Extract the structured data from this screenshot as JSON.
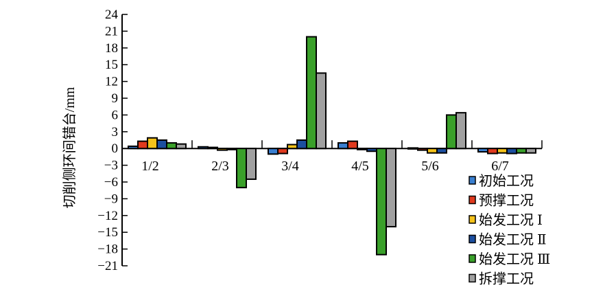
{
  "chart_data": {
    "type": "bar",
    "ylabel": "切削侧环间错台/mm",
    "ylim": [
      -21,
      24
    ],
    "yticks": [
      24,
      21,
      18,
      15,
      12,
      9,
      6,
      3,
      0,
      -3,
      -6,
      -9,
      -12,
      -15,
      -18,
      -21
    ],
    "categories": [
      "1/2",
      "2/3",
      "3/4",
      "4/5",
      "5/6",
      "6/7"
    ],
    "legend_position": "bottom-right",
    "grid": false,
    "series": [
      {
        "name": "初始工况",
        "color": "#3a7fd0",
        "values": [
          0.4,
          0.3,
          -1.0,
          1.0,
          0.1,
          -0.6
        ]
      },
      {
        "name": "预撑工况",
        "color": "#e03a1e",
        "values": [
          1.3,
          0.2,
          -0.9,
          1.3,
          -0.3,
          -0.9
        ]
      },
      {
        "name": "始发工况 Ⅰ",
        "color": "#f5c21a",
        "values": [
          1.9,
          -0.3,
          0.7,
          -0.2,
          -0.8,
          -0.8
        ]
      },
      {
        "name": "始发工况 Ⅱ",
        "color": "#1c4fa0",
        "values": [
          1.5,
          -0.2,
          1.5,
          -0.5,
          -0.8,
          -0.9
        ]
      },
      {
        "name": "始发工况 Ⅲ",
        "color": "#3aa02a",
        "values": [
          1.0,
          -7.0,
          20.0,
          -19.0,
          6.0,
          -0.8
        ]
      },
      {
        "name": "拆撑工况",
        "color": "#a0a0a0",
        "values": [
          0.8,
          -5.5,
          13.5,
          -14.0,
          6.4,
          -0.8
        ]
      }
    ]
  }
}
